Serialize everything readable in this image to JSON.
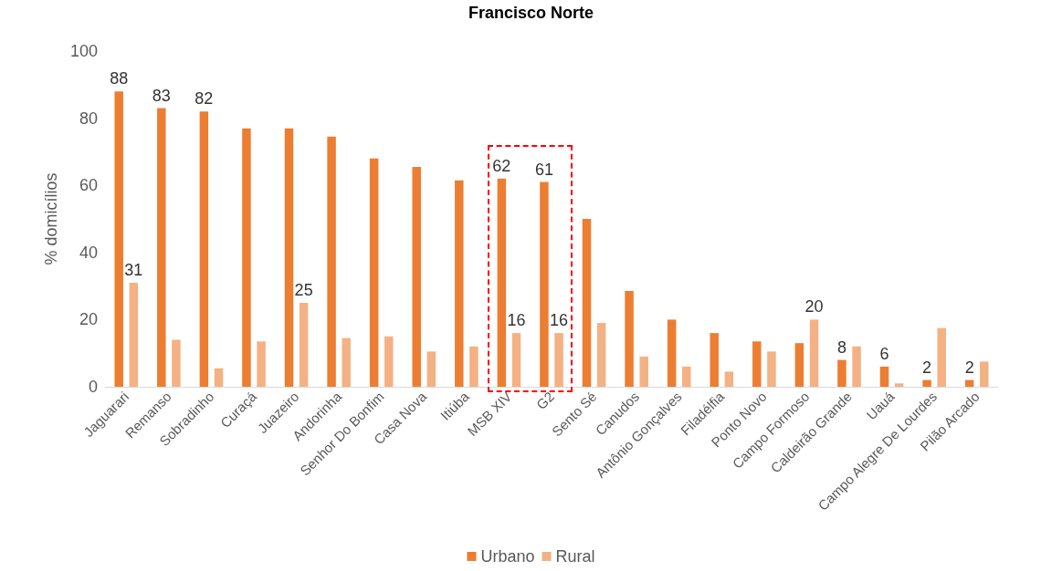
{
  "chart_data": {
    "type": "bar",
    "title": "Francisco Norte",
    "ylabel": "% domicílios",
    "categories": [
      "Jaguarari",
      "Remanso",
      "Sobradinho",
      "Curaçá",
      "Juazeiro",
      "Andorinha",
      "Senhor Do Bonfim",
      "Casa Nova",
      "Itiúba",
      "MSB XIV",
      "G2",
      "Sento Sé",
      "Canudos",
      "Antônio Gonçalves",
      "Filadélfia",
      "Ponto Novo",
      "Campo Formoso",
      "Caldeirão Grande",
      "Uauá",
      "Campo Alegre De Lourdes",
      "Pilão Arcado"
    ],
    "series": [
      {
        "name": "Urbano",
        "color": "#ed7d31",
        "values": [
          88,
          83,
          82,
          77,
          77,
          74.5,
          68,
          65.5,
          61.5,
          62,
          61,
          50,
          28.5,
          20,
          16,
          13.5,
          13,
          8,
          6,
          2,
          2
        ],
        "value_labels": [
          "88",
          "83",
          "82",
          null,
          null,
          null,
          null,
          null,
          null,
          "62",
          "61",
          null,
          null,
          null,
          null,
          null,
          null,
          "8",
          "6",
          "2",
          "2"
        ]
      },
      {
        "name": "Rural",
        "color": "#f4b183",
        "values": [
          31,
          14,
          5.5,
          13.5,
          25,
          14.5,
          15,
          10.5,
          12,
          16,
          16,
          19,
          9,
          6,
          4.5,
          10.5,
          20,
          12,
          1,
          17.5,
          7.5
        ],
        "value_labels": [
          "31",
          null,
          null,
          null,
          "25",
          null,
          null,
          null,
          null,
          "16",
          "16",
          null,
          null,
          null,
          null,
          null,
          "20",
          null,
          null,
          null,
          null
        ]
      }
    ],
    "ylim": [
      0,
      100
    ],
    "yticks": [
      0,
      20,
      40,
      60,
      80,
      100
    ],
    "legend": "bottom"
  }
}
